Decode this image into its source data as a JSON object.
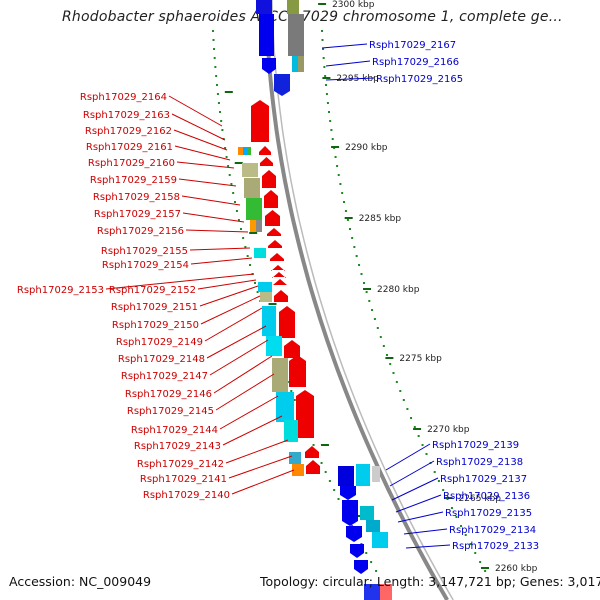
{
  "title": "Rhodobacter sphaeroides ATCC 17029 chromosome 1, complete ge...",
  "footer": {
    "accession": "Accession: NC_009049",
    "summary": "Topology: circular; Length: 3,147,721 bp; Genes: 3,017"
  },
  "colors": {
    "left_labels": "#cc0000",
    "right_labels": "#0000cc",
    "ruler_dots": "#228822",
    "backbone": "#888888",
    "scale_ticks": "#116611"
  },
  "scale_marks": [
    "2300 kbp",
    "2295 kbp",
    "2290 kbp",
    "2285 kbp",
    "2280 kbp",
    "2275 kbp",
    "2270 kbp",
    "2265 kbp",
    "2260 kbp"
  ],
  "left_genes": [
    "Rsph17029_2164",
    "Rsph17029_2163",
    "Rsph17029_2162",
    "Rsph17029_2161",
    "Rsph17029_2160",
    "Rsph17029_2159",
    "Rsph17029_2158",
    "Rsph17029_2157",
    "Rsph17029_2156",
    "Rsph17029_2155",
    "Rsph17029_2154",
    "Rsph17029_2153",
    "Rsph17029_2152",
    "Rsph17029_2151",
    "Rsph17029_2150",
    "Rsph17029_2149",
    "Rsph17029_2148",
    "Rsph17029_2147",
    "Rsph17029_2146",
    "Rsph17029_2145",
    "Rsph17029_2144",
    "Rsph17029_2143",
    "Rsph17029_2142",
    "Rsph17029_2141",
    "Rsph17029_2140"
  ],
  "right_genes": [
    "Rsph17029_2167",
    "Rsph17029_2166",
    "Rsph17029_2165",
    "Rsph17029_2139",
    "Rsph17029_2138",
    "Rsph17029_2137",
    "Rsph17029_2136",
    "Rsph17029_2135",
    "Rsph17029_2134",
    "Rsph17029_2133"
  ]
}
